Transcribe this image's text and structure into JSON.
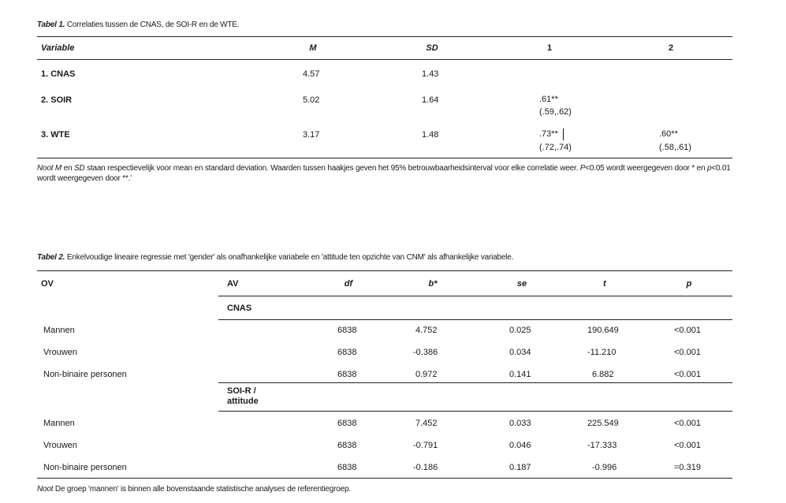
{
  "table1": {
    "caption_label": "Tabel 1.",
    "caption_text": "Correlaties tussen de CNAS, de SOI-R en de WTE.",
    "headers": {
      "variable": "Variable",
      "m": "M",
      "sd": "SD",
      "c1": "1",
      "c2": "2"
    },
    "rows": [
      {
        "variable": "1. CNAS",
        "m": "4.57",
        "sd": "1.43",
        "c1": "",
        "c1_ci": "",
        "c2": "",
        "c2_ci": ""
      },
      {
        "variable": "2. SOIR",
        "m": "5.02",
        "sd": "1.64",
        "c1": ".61**",
        "c1_ci": "(.59,.62)",
        "c2": "",
        "c2_ci": ""
      },
      {
        "variable": "3. WTE",
        "m": "3.17",
        "sd": "1.48",
        "c1": ".73**",
        "c1_ci": "(.72,.74)",
        "c2": ".60**",
        "c2_ci": "(.58,.61)"
      }
    ],
    "note": {
      "label": "Noot",
      "m": "M",
      "en": "en",
      "sd": "SD",
      "text1": "staan respectievelijk voor mean en standard deviation. Waarden tussen haakjes geven het 95% betrouwbaarheidsinterval voor elke correlatie weer.",
      "p1": "P",
      "text2": "<0.05 wordt",
      "text3": "weergegeven door * en",
      "p2": "p",
      "text4": "<0.01 wordt weergegeven door **.'"
    }
  },
  "table2": {
    "caption_label": "Tabel 2.",
    "caption_text": "Enkelvoudige lineaire regressie met 'gender' als onafhankelijke variabele en 'attitude ten opzichte van CNM' als afhankelijke variabele.",
    "headers": {
      "ov": "OV",
      "av": "AV",
      "df": "df",
      "b": "b*",
      "se": "se",
      "t": "t",
      "p": "p"
    },
    "group1": "CNAS",
    "group2_line1": "SOI-R /",
    "group2_line2": "attitude",
    "rows_group1": [
      {
        "ov": "Mannen",
        "df": "6838",
        "b": "4.752",
        "se": "0.025",
        "t": "190.649",
        "p": "<0.001"
      },
      {
        "ov": "Vrouwen",
        "df": "6838",
        "b": "-0.386",
        "se": "0.034",
        "t": "-11.210",
        "p": "<0.001"
      },
      {
        "ov": "Non-binaire personen",
        "df": "6838",
        "b": "0.972",
        "se": "0.141",
        "t": "6.882",
        "p": "<0.001"
      }
    ],
    "rows_group2": [
      {
        "ov": "Mannen",
        "df": "6838",
        "b": "7.452",
        "se": "0.033",
        "t": "225.549",
        "p": "<0.001"
      },
      {
        "ov": "Vrouwen",
        "df": "6838",
        "b": "-0.791",
        "se": "0.046",
        "t": "-17.333",
        "p": "<0.001"
      },
      {
        "ov": "Non-binaire personen",
        "df": "6838",
        "b": "-0.186",
        "se": "0.187",
        "t": "-0.996",
        "p": "=0.319"
      }
    ],
    "note": {
      "label": "Noot",
      "text": "De groep 'mannen' is binnen alle bovenstaande statistische analyses de referentiegroep."
    }
  }
}
